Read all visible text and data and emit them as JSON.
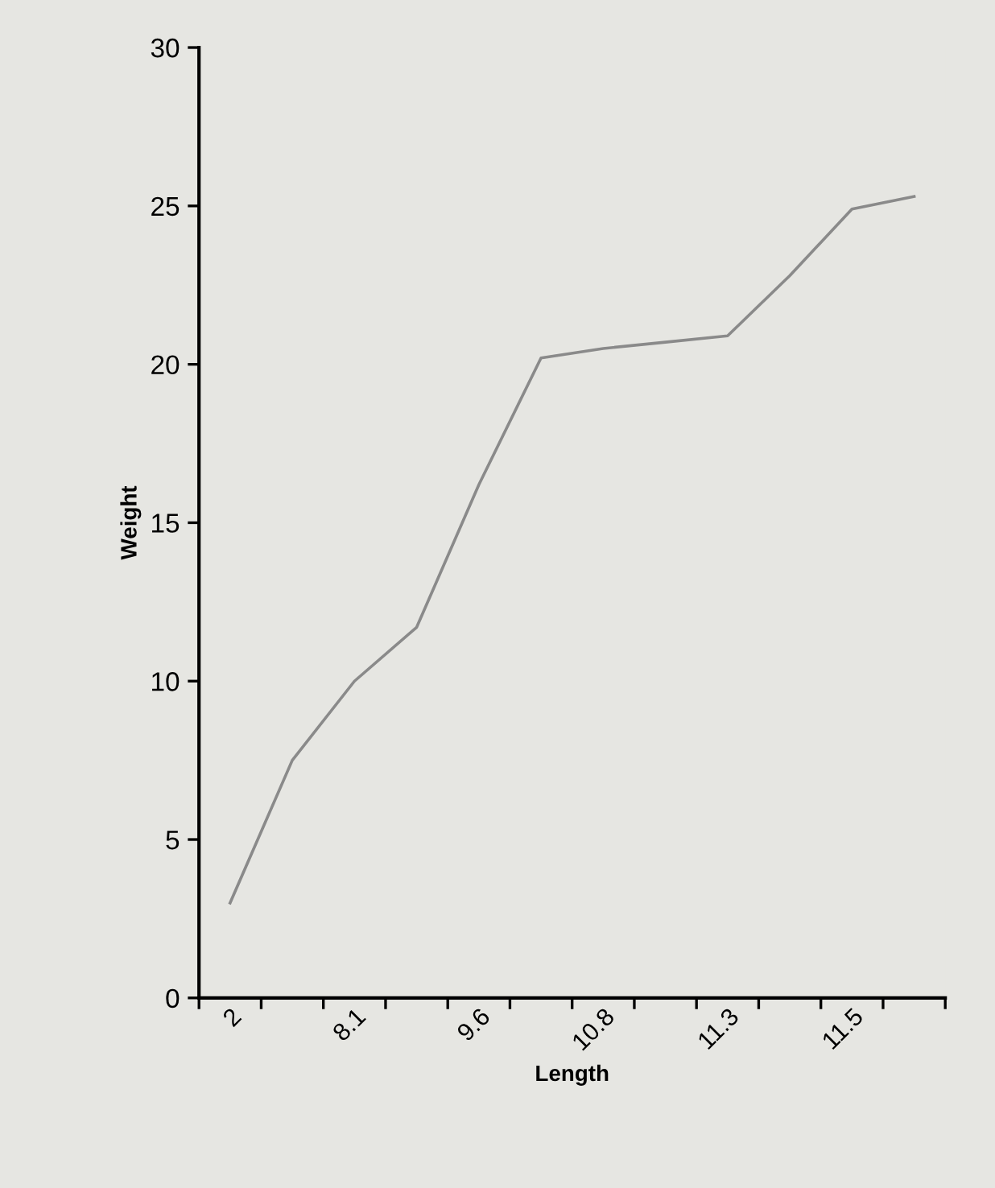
{
  "chart_data": {
    "type": "line",
    "xlabel": "Length",
    "ylabel": "Weight",
    "categories": [
      "2",
      null,
      "8.1",
      null,
      "9.6",
      null,
      "10.8",
      null,
      "11.3",
      null,
      "11.5",
      null
    ],
    "series": [
      {
        "color": "#8a8a8a",
        "values": [
          3.0,
          7.5,
          10.0,
          11.7,
          16.2,
          20.2,
          20.5,
          20.7,
          20.9,
          22.8,
          24.9,
          25.3
        ]
      }
    ],
    "ylim": [
      0,
      30
    ],
    "yticks": [
      0,
      5,
      10,
      15,
      20,
      25,
      30
    ],
    "grid": false,
    "legend": false,
    "marker": "none",
    "line_style": "solid"
  }
}
